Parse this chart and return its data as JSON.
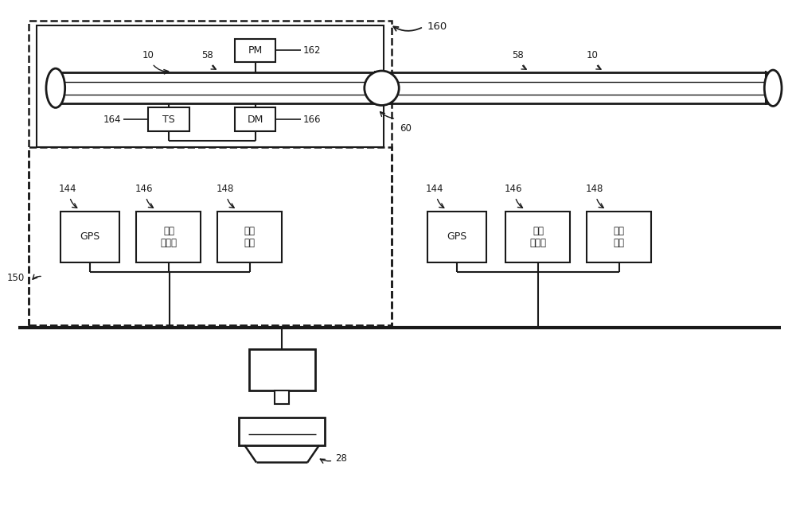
{
  "bg_color": "#ffffff",
  "line_color": "#1a1a1a",
  "fig_width": 10.0,
  "fig_height": 6.35,
  "labels": {
    "PM": "PM",
    "TS": "TS",
    "DM": "DM",
    "GPS": "GPS",
    "gas_sensor": "气体\n传感器",
    "camera": "拍摄\n装置"
  },
  "ref_numbers": {
    "160": "160",
    "162": "162",
    "164": "164",
    "166": "166",
    "144_left": "144",
    "146_left": "146",
    "148_left": "148",
    "150": "150",
    "60": "60",
    "58_left": "58",
    "10_left": "10",
    "58_right": "58",
    "10_right": "10",
    "144_right": "144",
    "146_right": "146",
    "148_right": "148",
    "28": "28"
  }
}
